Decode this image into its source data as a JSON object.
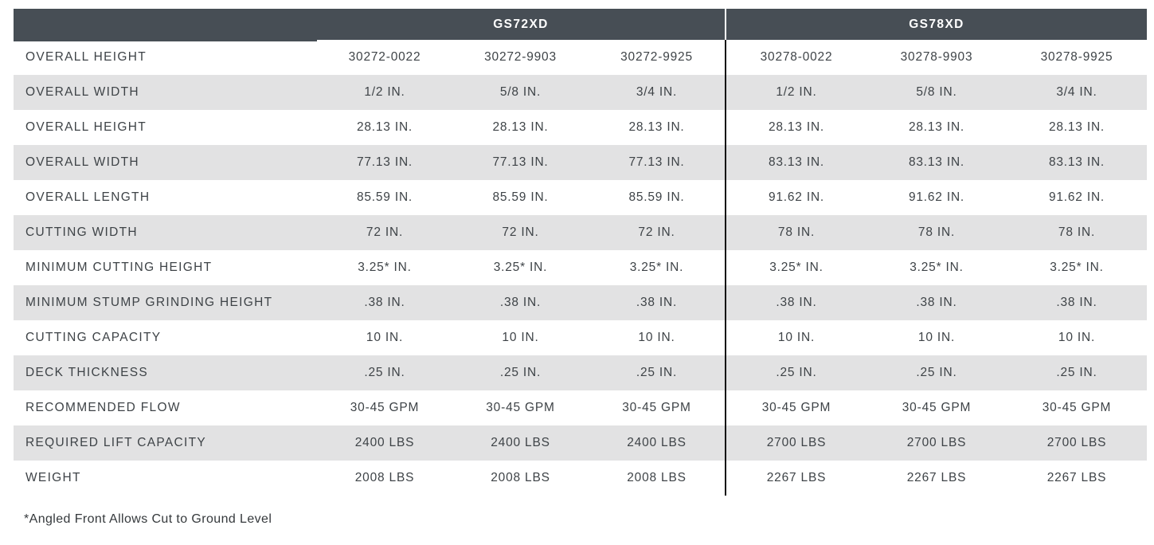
{
  "table": {
    "sections": [
      {
        "label": "GS72XD"
      },
      {
        "label": "GS78XD"
      }
    ],
    "rows": [
      {
        "label": "OVERALL HEIGHT",
        "gs72": [
          "30272-0022",
          "30272-9903",
          "30272-9925"
        ],
        "gs78": [
          "30278-0022",
          "30278-9903",
          "30278-9925"
        ]
      },
      {
        "label": "OVERALL WIDTH",
        "gs72": [
          "1/2 IN.",
          "5/8 IN.",
          "3/4 IN."
        ],
        "gs78": [
          "1/2 IN.",
          "5/8 IN.",
          "3/4 IN."
        ]
      },
      {
        "label": "OVERALL HEIGHT",
        "gs72": [
          "28.13 IN.",
          "28.13 IN.",
          "28.13 IN."
        ],
        "gs78": [
          "28.13 IN.",
          "28.13 IN.",
          "28.13 IN."
        ]
      },
      {
        "label": "OVERALL WIDTH",
        "gs72": [
          "77.13 IN.",
          "77.13 IN.",
          "77.13 IN."
        ],
        "gs78": [
          "83.13 IN.",
          "83.13 IN.",
          "83.13 IN."
        ]
      },
      {
        "label": "OVERALL LENGTH",
        "gs72": [
          "85.59 IN.",
          "85.59 IN.",
          "85.59 IN."
        ],
        "gs78": [
          "91.62 IN.",
          "91.62 IN.",
          "91.62 IN."
        ]
      },
      {
        "label": "CUTTING WIDTH",
        "gs72": [
          "72 IN.",
          "72 IN.",
          "72 IN."
        ],
        "gs78": [
          "78 IN.",
          "78 IN.",
          "78 IN."
        ]
      },
      {
        "label": "MINIMUM CUTTING HEIGHT",
        "gs72": [
          "3.25* IN.",
          "3.25* IN.",
          "3.25* IN."
        ],
        "gs78": [
          "3.25* IN.",
          "3.25* IN.",
          "3.25* IN."
        ]
      },
      {
        "label": "MINIMUM STUMP GRINDING HEIGHT",
        "gs72": [
          ".38 IN.",
          ".38 IN.",
          ".38 IN."
        ],
        "gs78": [
          ".38 IN.",
          ".38 IN.",
          ".38 IN."
        ]
      },
      {
        "label": "CUTTING CAPACITY",
        "gs72": [
          "10 IN.",
          "10 IN.",
          "10 IN."
        ],
        "gs78": [
          "10 IN.",
          "10 IN.",
          "10 IN."
        ]
      },
      {
        "label": "DECK THICKNESS",
        "gs72": [
          ".25 IN.",
          ".25 IN.",
          ".25 IN."
        ],
        "gs78": [
          ".25 IN.",
          ".25 IN.",
          ".25 IN."
        ]
      },
      {
        "label": "RECOMMENDED FLOW",
        "gs72": [
          "30-45 GPM",
          "30-45 GPM",
          "30-45 GPM"
        ],
        "gs78": [
          "30-45 GPM",
          "30-45 GPM",
          "30-45 GPM"
        ]
      },
      {
        "label": "REQUIRED LIFT CAPACITY",
        "gs72": [
          "2400 LBS",
          "2400 LBS",
          "2400 LBS"
        ],
        "gs78": [
          "2700 LBS",
          "2700 LBS",
          "2700 LBS"
        ]
      },
      {
        "label": "WEIGHT",
        "gs72": [
          "2008 LBS",
          "2008 LBS",
          "2008 LBS"
        ],
        "gs78": [
          "2267 LBS",
          "2267 LBS",
          "2267 LBS"
        ]
      }
    ],
    "footnote": "*Angled Front Allows Cut to Ground Level"
  },
  "colors": {
    "header_bg": "#474e55",
    "stripe_bg": "#e2e2e3",
    "text": "#3e4347",
    "divider": "#121212"
  }
}
